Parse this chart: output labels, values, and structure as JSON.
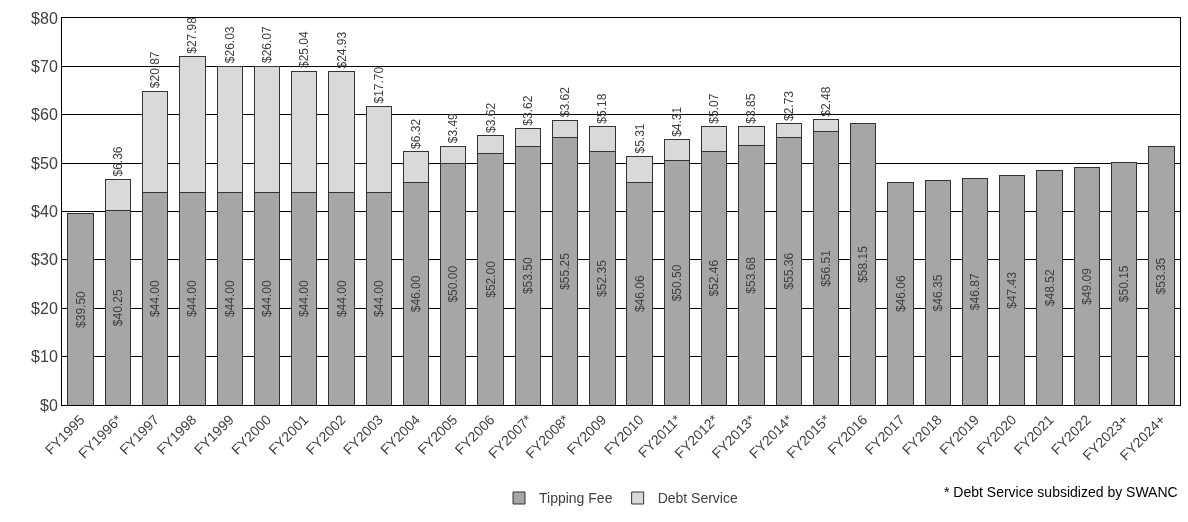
{
  "chart_data": {
    "type": "bar",
    "stacked": true,
    "categories": [
      "FY1995",
      "FY1996*",
      "FY1997",
      "FY1998",
      "FY1999",
      "FY2000",
      "FY2001",
      "FY2002",
      "FY2003",
      "FY2004",
      "FY2005",
      "FY2006",
      "FY2007*",
      "FY2008*",
      "FY2009",
      "FY2010",
      "FY2011*",
      "FY2012*",
      "FY2013*",
      "FY2014*",
      "FY2015*",
      "FY2016",
      "FY2017",
      "FY2018",
      "FY2019",
      "FY2020",
      "FY2021",
      "FY2022",
      "FY2023+",
      "FY2024+"
    ],
    "series": [
      {
        "name": "Tipping Fee",
        "color": "#a6a6a6",
        "values": [
          39.5,
          40.25,
          44.0,
          44.0,
          44.0,
          44.0,
          44.0,
          44.0,
          44.0,
          46.0,
          50.0,
          52.0,
          53.5,
          55.25,
          52.35,
          46.06,
          50.5,
          52.46,
          53.68,
          55.36,
          56.51,
          58.15,
          46.06,
          46.35,
          46.87,
          47.43,
          48.52,
          49.09,
          50.15,
          53.35
        ],
        "value_labels": [
          "$39.50",
          "$40.25",
          "$44.00",
          "$44.00",
          "$44.00",
          "$44.00",
          "$44.00",
          "$44.00",
          "$44.00",
          "$46.00",
          "$50.00",
          "$52.00",
          "$53.50",
          "$55.25",
          "$52.35",
          "$46.06",
          "$50.50",
          "$52.46",
          "$53.68",
          "$55.36",
          "$56.51",
          "$58.15",
          "$46.06",
          "$46.35",
          "$46.87",
          "$47.43",
          "$48.52",
          "$49.09",
          "$50.15",
          "$53.35"
        ]
      },
      {
        "name": "Debt Service",
        "color": "#d9d9d9",
        "values": [
          null,
          6.36,
          20.87,
          27.98,
          26.03,
          26.07,
          25.04,
          24.93,
          17.7,
          6.32,
          3.49,
          3.62,
          3.62,
          3.62,
          5.18,
          5.31,
          4.31,
          5.07,
          3.85,
          2.73,
          2.48,
          null,
          null,
          null,
          null,
          null,
          null,
          null,
          null,
          null
        ],
        "value_labels": [
          null,
          "$6.36",
          "$20.87",
          "$27.98",
          "$26.03",
          "$26.07",
          "$25.04",
          "$24.93",
          "$17.70",
          "$6.32",
          "$3.49",
          "$3.62",
          "$3.62",
          "$3.62",
          "$5.18",
          "$5.31",
          "$4.31",
          "$5.07",
          "$3.85",
          "$2.73",
          "$2.48",
          null,
          null,
          null,
          null,
          null,
          null,
          null,
          null,
          null
        ]
      }
    ],
    "ylim": [
      0,
      80
    ],
    "yticks": [
      {
        "value": 0,
        "label": "$0"
      },
      {
        "value": 10,
        "label": "$10"
      },
      {
        "value": 20,
        "label": "$20"
      },
      {
        "value": 30,
        "label": "$30"
      },
      {
        "value": 40,
        "label": "$40"
      },
      {
        "value": 50,
        "label": "$50"
      },
      {
        "value": 60,
        "label": "$60"
      },
      {
        "value": 70,
        "label": "$70"
      },
      {
        "value": 80,
        "label": "$80"
      }
    ],
    "grid": "y",
    "legend": "bottom",
    "annotations": [
      "* Debt Service subsidized by SWANC"
    ]
  }
}
